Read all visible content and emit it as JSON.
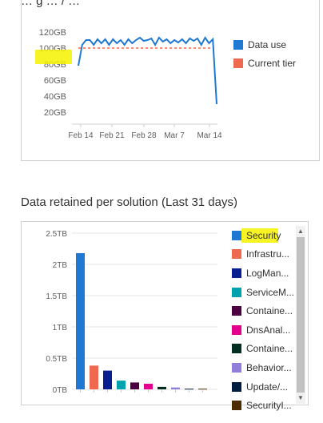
{
  "top_section": {
    "partial_title": "… g … / …"
  },
  "section2": {
    "title": "Data retained per solution (Last 31 days)"
  },
  "colors": {
    "data_use": "#1f78d1",
    "current_tier": "#ef6950",
    "axis_text": "#605e5c",
    "highlight": "#f6f200"
  },
  "chart_data": [
    {
      "type": "line",
      "title": "",
      "y_tick_labels": [
        "20GB",
        "40GB",
        "60GB",
        "80GB",
        "100GB",
        "120GB"
      ],
      "x_tick_labels": [
        "Feb 14",
        "Feb 21",
        "Feb 28",
        "Mar 7",
        "Mar 14"
      ],
      "ylim": [
        10,
        130
      ],
      "legend": "right",
      "series": [
        {
          "name": "Data use",
          "color": "#1f78d1",
          "values": [
            78,
            104,
            110,
            110,
            104,
            111,
            106,
            111,
            104,
            111,
            106,
            110,
            104,
            111,
            106,
            110,
            113,
            109,
            110,
            112,
            104,
            113,
            108,
            111,
            106,
            110,
            107,
            111,
            106,
            112,
            109,
            112,
            104,
            113,
            106,
            111,
            30
          ]
        },
        {
          "name": "Current tier",
          "color": "#ef6950",
          "style": "dashed",
          "values": [
            100
          ]
        }
      ]
    },
    {
      "type": "bar",
      "title": "Data retained per solution (Last 31 days)",
      "y_tick_labels": [
        "0TB",
        "0.5TB",
        "1TB",
        "1.5TB",
        "2TB",
        "2.5TB"
      ],
      "ylim": [
        0,
        2.5
      ],
      "legend": "right",
      "categories": [
        "Security",
        "Infrastru...",
        "LogMan...",
        "ServiceM...",
        "Containe...",
        "DnsAnal...",
        "Containe...",
        "Behavior...",
        "Update/...",
        "SecurityI..."
      ],
      "colors": [
        "#1f78d1",
        "#ef6950",
        "#0a1f8f",
        "#00a2ad",
        "#4b003f",
        "#e3008c",
        "#022f22",
        "#917edb",
        "#001d3f",
        "#4c2b00"
      ],
      "values": [
        2.18,
        0.38,
        0.3,
        0.14,
        0.11,
        0.09,
        0.04,
        0.03,
        0.01,
        0.01
      ]
    }
  ]
}
